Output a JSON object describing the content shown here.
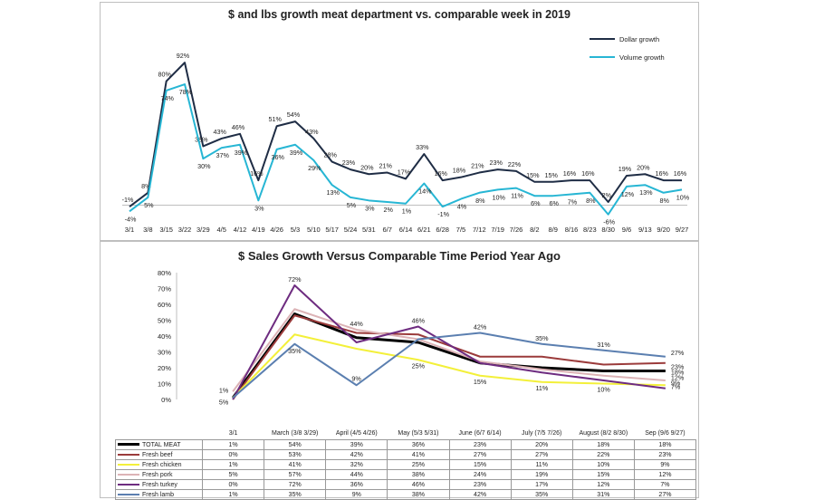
{
  "chart_data": [
    {
      "type": "line",
      "title": "$ and lbs growth meat department vs. comparable week in 2019",
      "categories": [
        "3/1",
        "3/8",
        "3/15",
        "3/22",
        "3/29",
        "4/5",
        "4/12",
        "4/19",
        "4/26",
        "5/3",
        "5/10",
        "5/17",
        "5/24",
        "5/31",
        "6/7",
        "6/14",
        "6/21",
        "6/28",
        "7/5",
        "7/12",
        "7/19",
        "7/26",
        "8/2",
        "8/9",
        "8/16",
        "8/23",
        "8/30",
        "9/6",
        "9/13",
        "9/20",
        "9/27"
      ],
      "series": [
        {
          "name": "Dollar growth",
          "color": "#1f2d45",
          "values": [
            -1,
            8,
            80,
            92,
            38,
            43,
            46,
            16,
            51,
            54,
            43,
            28,
            23,
            20,
            21,
            17,
            33,
            16,
            18,
            21,
            23,
            22,
            15,
            15,
            16,
            16,
            2,
            19,
            20,
            16,
            16
          ],
          "labels": [
            "-1%",
            "8%",
            "80%",
            "92%",
            "38%",
            "43%",
            "46%",
            "16%",
            "51%",
            "54%",
            "43%",
            "28%",
            "23%",
            "20%",
            "21%",
            "17%",
            "33%",
            "16%",
            "18%",
            "21%",
            "23%",
            "22%",
            "15%",
            "15%",
            "16%",
            "16%",
            "2%",
            "19%",
            "20%",
            "16%",
            "16%"
          ]
        },
        {
          "name": "Volume growth",
          "color": "#27b6d4",
          "values": [
            -4,
            5,
            74,
            78,
            30,
            37,
            39,
            3,
            36,
            39,
            29,
            13,
            5,
            3,
            2,
            1,
            14,
            -1,
            4,
            8,
            10,
            11,
            6,
            6,
            7,
            8,
            -6,
            12,
            13,
            8,
            10
          ],
          "labels": [
            "-4%",
            "5%",
            "74%",
            "78%",
            "30%",
            "37%",
            "39%",
            "3%",
            "36%",
            "39%",
            "29%",
            "13%",
            "5%",
            "3%",
            "2%",
            "1%",
            "14%",
            "-1%",
            "4%",
            "8%",
            "10%",
            "11%",
            "6%",
            "6%",
            "7%",
            "8%",
            "-6%",
            "12%",
            "13%",
            "8%",
            "10%"
          ]
        }
      ],
      "grid": false,
      "legend": "top-right"
    },
    {
      "type": "line",
      "title": "$ Sales Growth Versus Comparable Time Period Year Ago",
      "categories": [
        "3/1",
        "March (3/8 3/29)",
        "April (4/5 4/26)",
        "May (5/3 5/31)",
        "June (6/7 6/14)",
        "July (7/5 7/26)",
        "August (8/2 8/30)",
        "Sep (9/6 9/27)"
      ],
      "yticks": [
        "0%",
        "10%",
        "20%",
        "30%",
        "40%",
        "50%",
        "60%",
        "70%",
        "80%"
      ],
      "ylim": [
        0,
        80
      ],
      "series": [
        {
          "name": "TOTAL MEAT",
          "color": "#000000",
          "values": [
            1,
            54,
            39,
            36,
            23,
            20,
            18,
            18
          ],
          "table": [
            "1%",
            "54%",
            "39%",
            "36%",
            "23%",
            "20%",
            "18%",
            "18%"
          ]
        },
        {
          "name": "Fresh beef",
          "color": "#9b3b3b",
          "values": [
            0,
            53,
            42,
            41,
            27,
            27,
            22,
            23
          ],
          "table": [
            "0%",
            "53%",
            "42%",
            "41%",
            "27%",
            "27%",
            "22%",
            "23%"
          ]
        },
        {
          "name": "Fresh chicken",
          "color": "#f3f03a",
          "values": [
            1,
            41,
            32,
            25,
            15,
            11,
            10,
            9
          ],
          "table": [
            "1%",
            "41%",
            "32%",
            "25%",
            "15%",
            "11%",
            "10%",
            "9%"
          ]
        },
        {
          "name": "Fresh pork",
          "color": "#dcb3b6",
          "values": [
            5,
            57,
            44,
            38,
            24,
            19,
            15,
            12
          ],
          "table": [
            "5%",
            "57%",
            "44%",
            "38%",
            "24%",
            "19%",
            "15%",
            "12%"
          ]
        },
        {
          "name": "Fresh turkey",
          "color": "#6e2c80",
          "values": [
            0,
            72,
            36,
            46,
            23,
            17,
            12,
            7
          ],
          "table": [
            "0%",
            "72%",
            "36%",
            "46%",
            "23%",
            "17%",
            "12%",
            "7%"
          ]
        },
        {
          "name": "Fresh lamb",
          "color": "#5b7fb0",
          "values": [
            1,
            35,
            9,
            38,
            42,
            35,
            31,
            27
          ],
          "table": [
            "1%",
            "35%",
            "9%",
            "38%",
            "42%",
            "35%",
            "31%",
            "27%"
          ]
        }
      ],
      "annotations": [
        {
          "text": "1%",
          "series": 5,
          "i": 0,
          "color": "#5b7fb0"
        },
        {
          "text": "5%",
          "series": 3,
          "i": 0,
          "color": "#c79a9d"
        },
        {
          "text": "72%",
          "series": 4,
          "i": 1,
          "color": "#6e2c80"
        },
        {
          "text": "35%",
          "series": 5,
          "i": 1,
          "color": "#5b7fb0"
        },
        {
          "text": "44%",
          "series": 3,
          "i": 2,
          "color": "#c79a9d"
        },
        {
          "text": "9%",
          "series": 5,
          "i": 2,
          "color": "#5b7fb0"
        },
        {
          "text": "46%",
          "series": 4,
          "i": 3,
          "color": "#6e2c80"
        },
        {
          "text": "25%",
          "series": 2,
          "i": 3,
          "color": "#c9b400"
        },
        {
          "text": "42%",
          "series": 5,
          "i": 4,
          "color": "#5b7fb0"
        },
        {
          "text": "15%",
          "series": 2,
          "i": 4,
          "color": "#c9b400"
        },
        {
          "text": "35%",
          "series": 5,
          "i": 5,
          "color": "#5b7fb0"
        },
        {
          "text": "11%",
          "series": 2,
          "i": 5,
          "color": "#c9b400"
        },
        {
          "text": "31%",
          "series": 5,
          "i": 6,
          "color": "#5b7fb0"
        },
        {
          "text": "10%",
          "series": 2,
          "i": 6,
          "color": "#c9b400"
        },
        {
          "text": "27%",
          "series": 5,
          "i": 7,
          "color": "#5b7fb0"
        },
        {
          "text": "23%",
          "series": 1,
          "i": 7,
          "color": "#9b3b3b"
        },
        {
          "text": "18%",
          "series": 0,
          "i": 7,
          "color": "#000000"
        },
        {
          "text": "12%",
          "series": 3,
          "i": 7,
          "color": "#c79a9d"
        },
        {
          "text": "9%",
          "series": 2,
          "i": 7,
          "color": "#c9b400"
        },
        {
          "text": "7%",
          "series": 4,
          "i": 7,
          "color": "#6e2c80"
        }
      ],
      "legend": "bottom-table"
    }
  ]
}
